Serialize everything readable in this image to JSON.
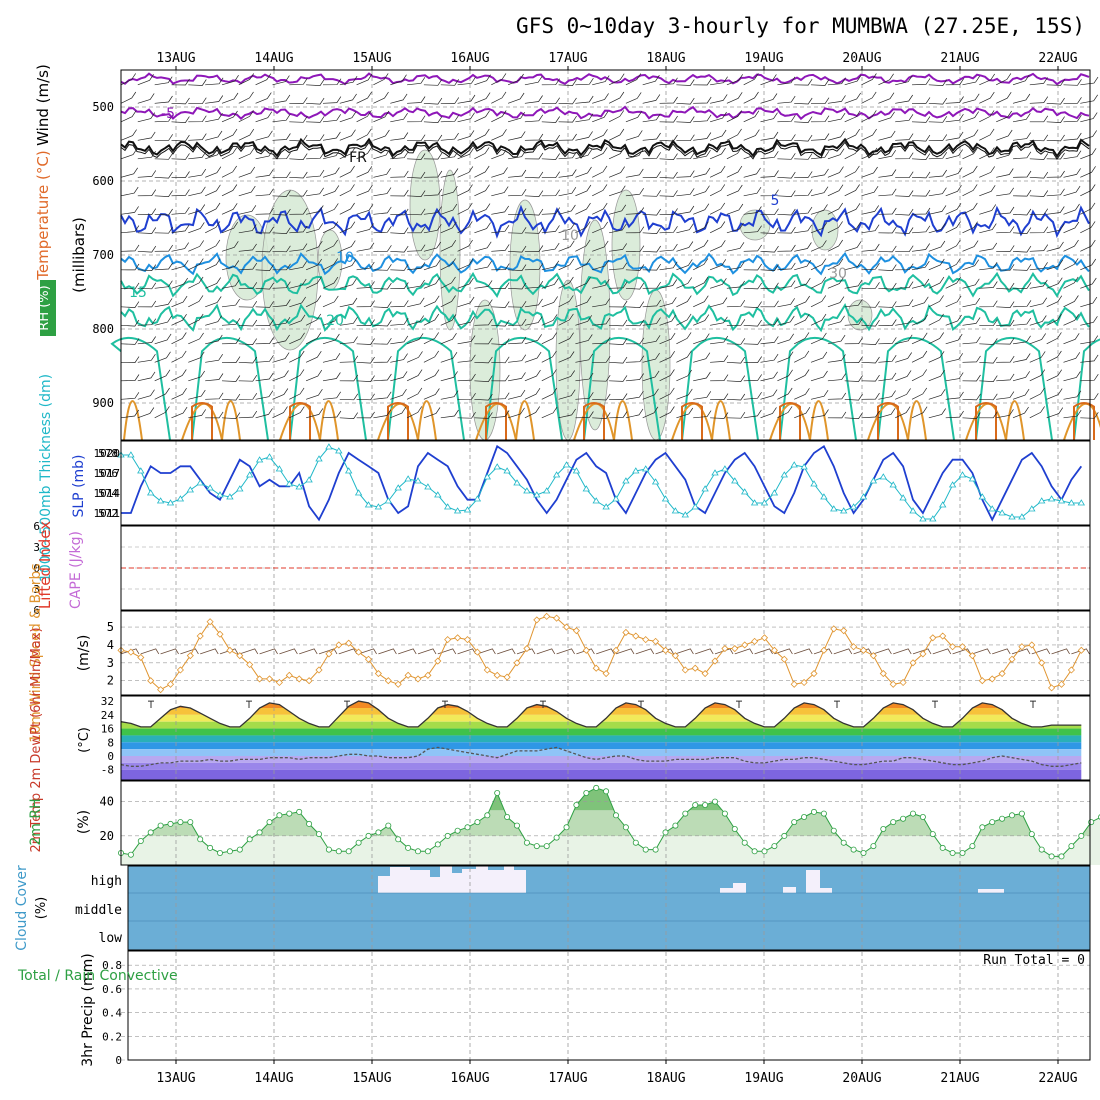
{
  "title": "GFS 0~10day 3-hourly for MUMBWA (27.25E, 15S)",
  "dates": [
    "13AUG",
    "14AUG",
    "15AUG",
    "16AUG",
    "17AUG",
    "18AUG",
    "19AUG",
    "20AUG",
    "21AUG",
    "22AUG"
  ],
  "colors": {
    "grid": "#9a9a9a",
    "rh": "#2ea043",
    "temp_purple": "#8e17b8",
    "temp_blue": "#1f3fd0",
    "temp_sky": "#1e90e0",
    "temp_teal": "#1fbfa0",
    "temp_orange": "#e0952a",
    "slp": "#1f3fd0",
    "thickness": "#20b8c8",
    "cape": "#c46bd6",
    "lifted": "#e0392b",
    "wind10": "#e09530",
    "dewpt": "#555555",
    "cloud": "#6baed6",
    "precip_total": "#2ea043",
    "precip_conv": "#e0392b"
  },
  "chart_data": [
    {
      "type": "contour",
      "name": "upper-air",
      "ylabel": "(millibars)",
      "side_labels": [
        "Wind (m/s)",
        "Temperature (°C)",
        "RH (%)"
      ],
      "yticks": [
        500,
        600,
        700,
        800,
        900
      ],
      "ylim": [
        450,
        950
      ],
      "contour_labels": [
        "-5",
        "FR",
        "5",
        "10",
        "15",
        "20",
        "10",
        "30"
      ]
    },
    {
      "type": "line",
      "name": "slp-thickness",
      "left_ticks": [
        578,
        576,
        574,
        572
      ],
      "right_ticks": [
        1020,
        1017,
        1014,
        1011
      ],
      "left_label": "1000~500mb Thickness (dm)",
      "right_label": "SLP (mb)",
      "series": [
        {
          "name": "SLP (mb)",
          "values": [
            1011,
            1011,
            1015,
            1018,
            1017,
            1017,
            1018,
            1018,
            1016,
            1014,
            1013,
            1016,
            1019,
            1018,
            1015,
            1016,
            1015,
            1015,
            1017,
            1012,
            1010,
            1013,
            1017,
            1020,
            1019,
            1018,
            1017,
            1013,
            1011,
            1012,
            1018,
            1020,
            1019,
            1018,
            1015,
            1013,
            1013,
            1017,
            1021,
            1020,
            1018,
            1016,
            1013,
            1011,
            1013,
            1016,
            1019,
            1020,
            1018,
            1017,
            1013,
            1011,
            1014,
            1017,
            1019,
            1020,
            1018,
            1016,
            1012,
            1011,
            1014,
            1017,
            1019,
            1020,
            1018,
            1015,
            1012,
            1011,
            1014,
            1018,
            1020,
            1021,
            1018,
            1014,
            1011,
            1013,
            1016,
            1019,
            1020,
            1018,
            1013,
            1011,
            1014,
            1017,
            1019,
            1019,
            1017,
            1013,
            1010,
            1013,
            1016,
            1019,
            1020,
            1018,
            1015,
            1013,
            1016,
            1018
          ]
        },
        {
          "name": "Thickness (dm)",
          "values": [
            577.8,
            577.8,
            576.2,
            574.0,
            573.2,
            573.0,
            573.4,
            574.3,
            575.0,
            574.5,
            573.8,
            573.6,
            574.4,
            575.8,
            577.3,
            577.6,
            576.4,
            574.9,
            574.6,
            575.3,
            577.4,
            578.6,
            578.2,
            576.2,
            574.0,
            572.8,
            572.6,
            573.2,
            574.5,
            575.4,
            575.2,
            574.6,
            573.8,
            572.6,
            572.2,
            572.3,
            573.4,
            575.6,
            576.6,
            576.2,
            575.0,
            574.2,
            573.8,
            574.2,
            575.8,
            576.8,
            576.2,
            574.4,
            573.2,
            572.6,
            573.4,
            575.2,
            576.2,
            576.4,
            575.1,
            573.4,
            572.2,
            571.8,
            572.6,
            574.4,
            576.0,
            576.4,
            575.2,
            574.1,
            573.0,
            573.0,
            574.0,
            575.8,
            576.8,
            576.6,
            574.9,
            573.6,
            572.4,
            572.2,
            572.6,
            573.6,
            575.2,
            575.6,
            574.8,
            573.5,
            572.2,
            571.4,
            571.4,
            572.8,
            574.8,
            575.8,
            575.4,
            573.6,
            572.4,
            572.0,
            571.6,
            571.6,
            572.4,
            573.2,
            573.4,
            573.2,
            573.0,
            573.0
          ]
        }
      ]
    },
    {
      "type": "line",
      "name": "lifted-cape",
      "yticks": [
        -6,
        -3,
        0,
        3,
        6
      ],
      "ytick_labels": [
        "6",
        "3",
        "0",
        "3",
        "6"
      ],
      "left_label": "Lifted Index",
      "right_label": "CAPE (J/kg)",
      "series": [
        {
          "name": "Lifted Index",
          "values": [
            0
          ]
        }
      ]
    },
    {
      "type": "line",
      "name": "wind10m",
      "ylabel": "(m/s)",
      "left_label": "10m Wind Speed & Barbs",
      "yticks": [
        2,
        3,
        4,
        5
      ],
      "ylim": [
        1.2,
        5.9
      ],
      "series": [
        {
          "name": "10m Wind Speed",
          "values": [
            3.7,
            3.6,
            3.3,
            2.0,
            1.5,
            1.8,
            2.6,
            3.4,
            4.5,
            5.3,
            4.6,
            3.7,
            3.4,
            2.9,
            2.1,
            2.1,
            1.9,
            2.3,
            2.1,
            2.0,
            2.6,
            3.5,
            4.0,
            4.1,
            3.6,
            3.2,
            2.4,
            2.0,
            1.8,
            2.3,
            2.1,
            2.3,
            3.1,
            4.3,
            4.4,
            4.3,
            3.6,
            2.6,
            2.3,
            2.2,
            3.0,
            3.8,
            5.4,
            5.6,
            5.5,
            5.0,
            4.8,
            3.7,
            2.7,
            2.4,
            3.7,
            4.7,
            4.5,
            4.3,
            4.2,
            3.7,
            3.4,
            2.6,
            2.7,
            2.4,
            3.1,
            3.8,
            3.8,
            4.0,
            4.2,
            4.4,
            3.7,
            3.2,
            1.8,
            1.9,
            2.4,
            3.7,
            4.9,
            4.8,
            3.9,
            3.7,
            3.4,
            2.4,
            1.8,
            1.9,
            3.0,
            3.5,
            4.4,
            4.5,
            3.9,
            3.9,
            3.4,
            2.0,
            2.1,
            2.4,
            3.2,
            3.9,
            4.0,
            3.0,
            1.6,
            1.8,
            2.6,
            3.7
          ]
        }
      ]
    },
    {
      "type": "area",
      "name": "temp-dewpt",
      "ylabel": "(°C)",
      "left_label": "2m Temp 2m DewPt (6hr Min/Max)",
      "yticks": [
        32,
        24,
        16,
        8,
        0,
        -8
      ],
      "ylim": [
        -14,
        35
      ],
      "series": [
        {
          "name": "2m Temp",
          "values": [
            20,
            19,
            17,
            17,
            22,
            27,
            29,
            28,
            25,
            22,
            19,
            17,
            17,
            22,
            28,
            31,
            30,
            26,
            22,
            19,
            17,
            17,
            23,
            29,
            32,
            31,
            27,
            22,
            19,
            17,
            17,
            22,
            28,
            30,
            29,
            26,
            22,
            19,
            17,
            17,
            22,
            28,
            30,
            29,
            26,
            22,
            19,
            17,
            17,
            22,
            28,
            31,
            30,
            27,
            22,
            19,
            17,
            17,
            22,
            28,
            31,
            30,
            27,
            22,
            19,
            17,
            17,
            22,
            28,
            31,
            30,
            27,
            22,
            19,
            17,
            17,
            22,
            28,
            31,
            30,
            27,
            22,
            19,
            17,
            17,
            22,
            28,
            31,
            30,
            27,
            22,
            19,
            17,
            17,
            18,
            18,
            18,
            18
          ]
        },
        {
          "name": "2m DewPt",
          "values": [
            -5,
            -6,
            -6,
            -5,
            -4,
            -4,
            -3,
            -3,
            -3,
            -2,
            -3,
            -3,
            -2,
            -2,
            -2,
            -1,
            -1,
            -1,
            -2,
            -1,
            -1,
            -1,
            0,
            1,
            1,
            0,
            0,
            -1,
            -1,
            -1,
            0,
            4,
            5,
            4,
            3,
            2,
            1,
            0,
            -1,
            1,
            3,
            3,
            3,
            4,
            5,
            3,
            1,
            -1,
            -2,
            -1,
            0,
            0,
            -2,
            -3,
            -3,
            -3,
            -2,
            -2,
            -2,
            -2,
            -1,
            -1,
            -1,
            -3,
            -4,
            -4,
            -3,
            -2,
            -2,
            -1,
            -1,
            -2,
            -3,
            -4,
            -5,
            -5,
            -4,
            -3,
            -3,
            -1,
            -1,
            -2,
            -3,
            -4,
            -5,
            -5,
            -4,
            -3,
            -1,
            0,
            -1,
            -2,
            -3,
            -5,
            -6,
            -6,
            -5,
            -4
          ]
        }
      ]
    },
    {
      "type": "area",
      "name": "rh2m",
      "ylabel": "(%)",
      "left_label": "2m RH",
      "yticks": [
        20,
        40
      ],
      "ylim": [
        3,
        52
      ],
      "series": [
        {
          "name": "2m RH",
          "values": [
            10,
            9,
            17,
            22,
            26,
            27,
            28,
            28,
            18,
            13,
            10,
            11,
            12,
            18,
            22,
            28,
            32,
            33,
            34,
            27,
            21,
            12,
            11,
            11,
            16,
            20,
            22,
            26,
            18,
            13,
            11,
            11,
            15,
            20,
            23,
            25,
            28,
            32,
            45,
            31,
            26,
            16,
            14,
            14,
            19,
            25,
            38,
            45,
            48,
            46,
            32,
            25,
            16,
            12,
            12,
            22,
            26,
            33,
            38,
            38,
            40,
            33,
            24,
            16,
            11,
            11,
            14,
            20,
            28,
            31,
            34,
            33,
            23,
            16,
            12,
            10,
            14,
            24,
            28,
            30,
            33,
            31,
            21,
            13,
            10,
            10,
            14,
            25,
            28,
            30,
            32,
            33,
            21,
            12,
            8,
            8,
            14,
            20,
            28,
            31,
            33,
            36,
            24
          ]
        }
      ]
    },
    {
      "type": "heatmap",
      "name": "cloud-cover",
      "ylabel": "(%)",
      "left_label": "Cloud Cover",
      "levels": [
        "high",
        "middle",
        "low"
      ]
    },
    {
      "type": "bar",
      "name": "precip",
      "ylabel": "3hr Precip (mm)",
      "left_label": "Total / Rain Convective",
      "yticks": [
        0,
        0.2,
        0.4,
        0.6,
        0.8
      ],
      "ylim": [
        0,
        0.92
      ],
      "run_total_label": "Run Total = 0",
      "series": [
        {
          "name": "3hr Precip",
          "values": [
            0
          ]
        }
      ]
    }
  ]
}
